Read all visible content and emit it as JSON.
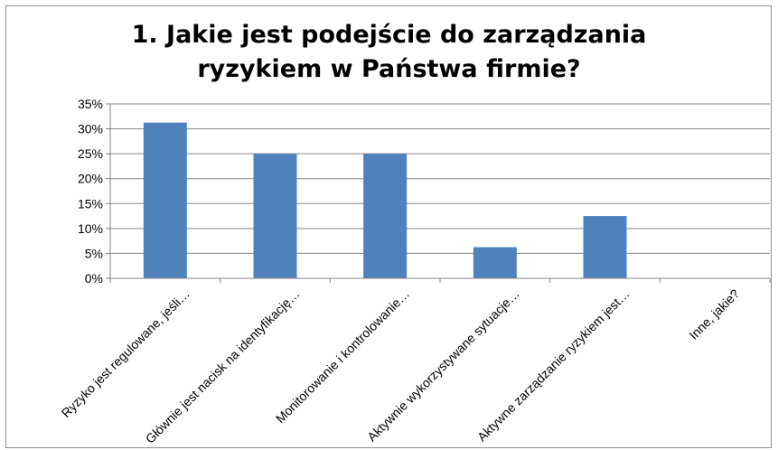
{
  "chart_data": {
    "type": "bar",
    "title_lines": [
      "1. Jakie jest podejście do zarządzania",
      "ryzykiem w Państwa firmie?"
    ],
    "categories": [
      "Ryzyko jest regulowane, jeśli…",
      "Głównie jest nacisk na identyfikację…",
      "Monitorowanie i kontrolowanie…",
      "Aktywnie wykorzystywane sytuacje…",
      "Aktywne zarządzanie ryzykiem jest…",
      "Inne, jakie?"
    ],
    "values": [
      31.25,
      25,
      25,
      6.25,
      12.5,
      0
    ],
    "ylim": [
      0,
      35
    ],
    "yticks": [
      0,
      5,
      10,
      15,
      20,
      25,
      30,
      35
    ],
    "ytick_labels": [
      "0%",
      "5%",
      "10%",
      "15%",
      "20%",
      "25%",
      "30%",
      "35%"
    ],
    "grid": true,
    "legend": "none",
    "bar_color": "#4f81bd",
    "grid_color": "#868686"
  }
}
